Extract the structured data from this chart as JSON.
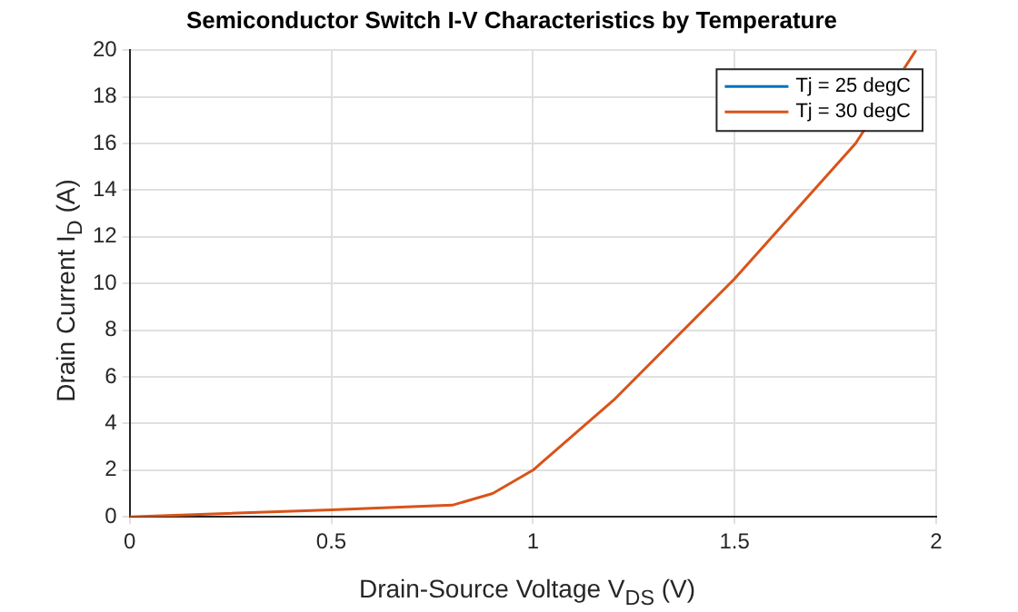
{
  "chart_data": {
    "type": "line",
    "title": "Semiconductor Switch I-V Characteristics by Temperature",
    "xlabel": "Drain-Source Voltage V$_{DS}$ (V)",
    "ylabel": "Drain Current I$_{D}$ (A)",
    "x": [
      0,
      0.5,
      0.8,
      0.9,
      1,
      1.2,
      1.5,
      1.8,
      1.95
    ],
    "series": [
      {
        "name": "Tj = 25 degC",
        "color": "#0072bd",
        "values": [
          null,
          null,
          null,
          null,
          null,
          null,
          null,
          null,
          null
        ]
      },
      {
        "name": "Tj = 30 degC",
        "color": "#d95319",
        "values": [
          0,
          0.3,
          0.5,
          1,
          2,
          5,
          10.2,
          16,
          20
        ]
      }
    ],
    "xlim": [
      0,
      2
    ],
    "xticks": [
      0,
      0.5,
      1,
      1.5,
      2
    ],
    "ylim": [
      0,
      20
    ],
    "yticks": [
      0,
      2,
      4,
      6,
      8,
      10,
      12,
      14,
      16,
      18,
      20
    ],
    "grid": true,
    "legend": "top right",
    "marker": "none",
    "line_style": "solid"
  }
}
